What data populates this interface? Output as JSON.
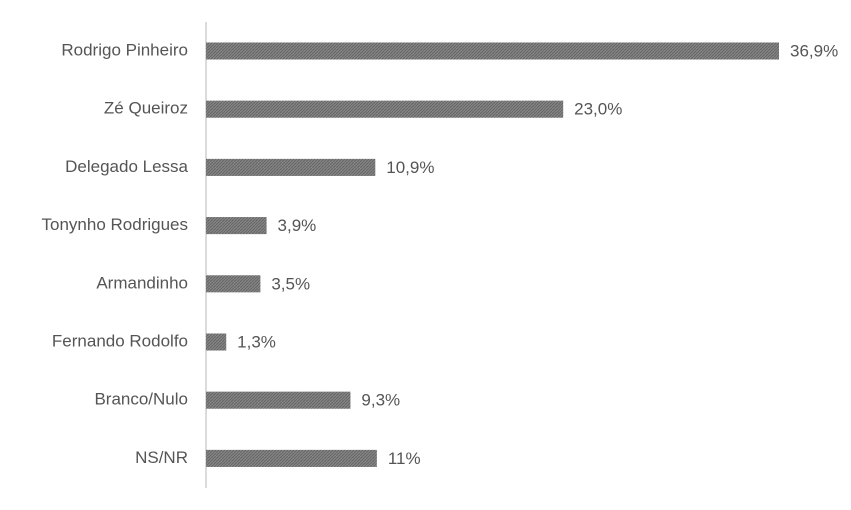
{
  "chart_data": {
    "type": "bar",
    "orientation": "horizontal",
    "categories": [
      "Rodrigo Pinheiro",
      "Zé Queiroz",
      "Delegado Lessa",
      "Tonynho Rodrigues",
      "Armandinho",
      "Fernando Rodolfo",
      "Branco/Nulo",
      "NS/NR"
    ],
    "values": [
      36.9,
      23.0,
      10.9,
      3.9,
      3.5,
      1.3,
      9.3,
      11
    ],
    "value_labels": [
      "36,9%",
      "23,0%",
      "10,9%",
      "3,9%",
      "3,5%",
      "1,3%",
      "9,3%",
      "11%"
    ],
    "color": "#7a7a7a"
  }
}
